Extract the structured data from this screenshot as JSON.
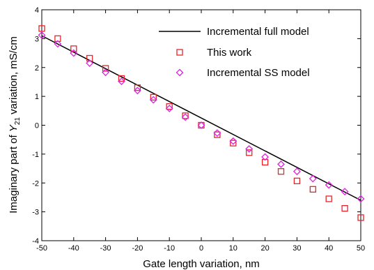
{
  "chart_data": {
    "type": "line",
    "xlabel": "Gate length variation, nm",
    "ylabel_parts": [
      "Imaginary part of ",
      "Y",
      "21",
      " variation, mS/cm"
    ],
    "xlim": [
      -50,
      50
    ],
    "ylim": [
      -4,
      4
    ],
    "x_ticks": [
      -50,
      -40,
      -30,
      -20,
      -10,
      0,
      10,
      20,
      30,
      40,
      50
    ],
    "y_ticks": [
      -4,
      -3,
      -2,
      -1,
      0,
      1,
      2,
      3,
      4
    ],
    "grid": false,
    "legend_position": "top-right",
    "series": [
      {
        "name": "Incremental full model",
        "style": "line",
        "color": "#000000",
        "x": [
          -50,
          50
        ],
        "y": [
          3.1,
          -2.6
        ]
      },
      {
        "name": "This work",
        "style": "square",
        "color": "#e8232a",
        "x": [
          -50,
          -45,
          -40,
          -35,
          -30,
          -25,
          -20,
          -15,
          -10,
          -5,
          0,
          5,
          10,
          15,
          20,
          25,
          30,
          35,
          40,
          45,
          50
        ],
        "y": [
          3.35,
          3.0,
          2.65,
          2.32,
          1.97,
          1.62,
          1.3,
          0.97,
          0.65,
          0.33,
          0.0,
          -0.33,
          -0.62,
          -0.95,
          -1.28,
          -1.6,
          -1.93,
          -2.22,
          -2.55,
          -2.88,
          -3.2
        ]
      },
      {
        "name": "Incremental SS model",
        "style": "diamond",
        "color": "#e11fe0",
        "x": [
          -50,
          -45,
          -40,
          -35,
          -30,
          -25,
          -20,
          -15,
          -10,
          -5,
          0,
          5,
          10,
          15,
          20,
          25,
          30,
          35,
          40,
          45,
          50
        ],
        "y": [
          3.12,
          2.82,
          2.5,
          2.15,
          1.83,
          1.52,
          1.2,
          0.88,
          0.58,
          0.28,
          0.0,
          -0.27,
          -0.55,
          -0.82,
          -1.1,
          -1.35,
          -1.6,
          -1.85,
          -2.07,
          -2.3,
          -2.55
        ]
      }
    ]
  }
}
